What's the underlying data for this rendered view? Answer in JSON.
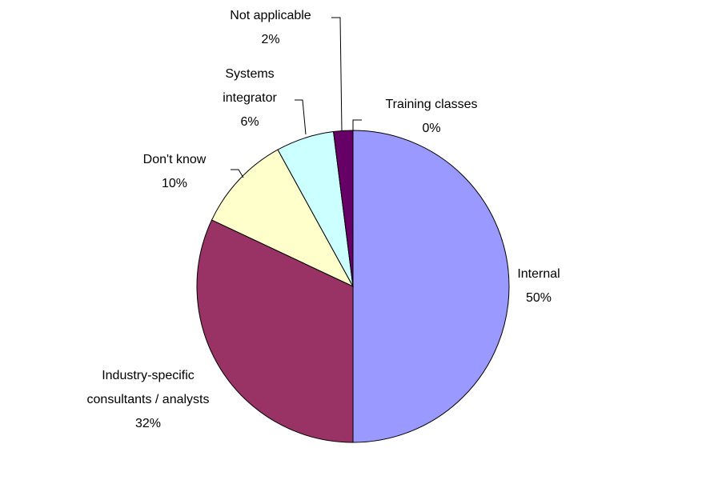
{
  "chart_data": {
    "type": "pie",
    "categories": [
      "Internal",
      "Industry-specific consultants / analysts",
      "Don't know",
      "Systems integrator",
      "Not applicable",
      "Training classes"
    ],
    "values": [
      50,
      32,
      10,
      6,
      2,
      0
    ],
    "value_labels": [
      "50%",
      "32%",
      "10%",
      "6%",
      "2%",
      "0%"
    ],
    "colors": [
      "#9999ff",
      "#993366",
      "#ffffcc",
      "#ccffff",
      "#660066",
      "#ff8080"
    ]
  }
}
